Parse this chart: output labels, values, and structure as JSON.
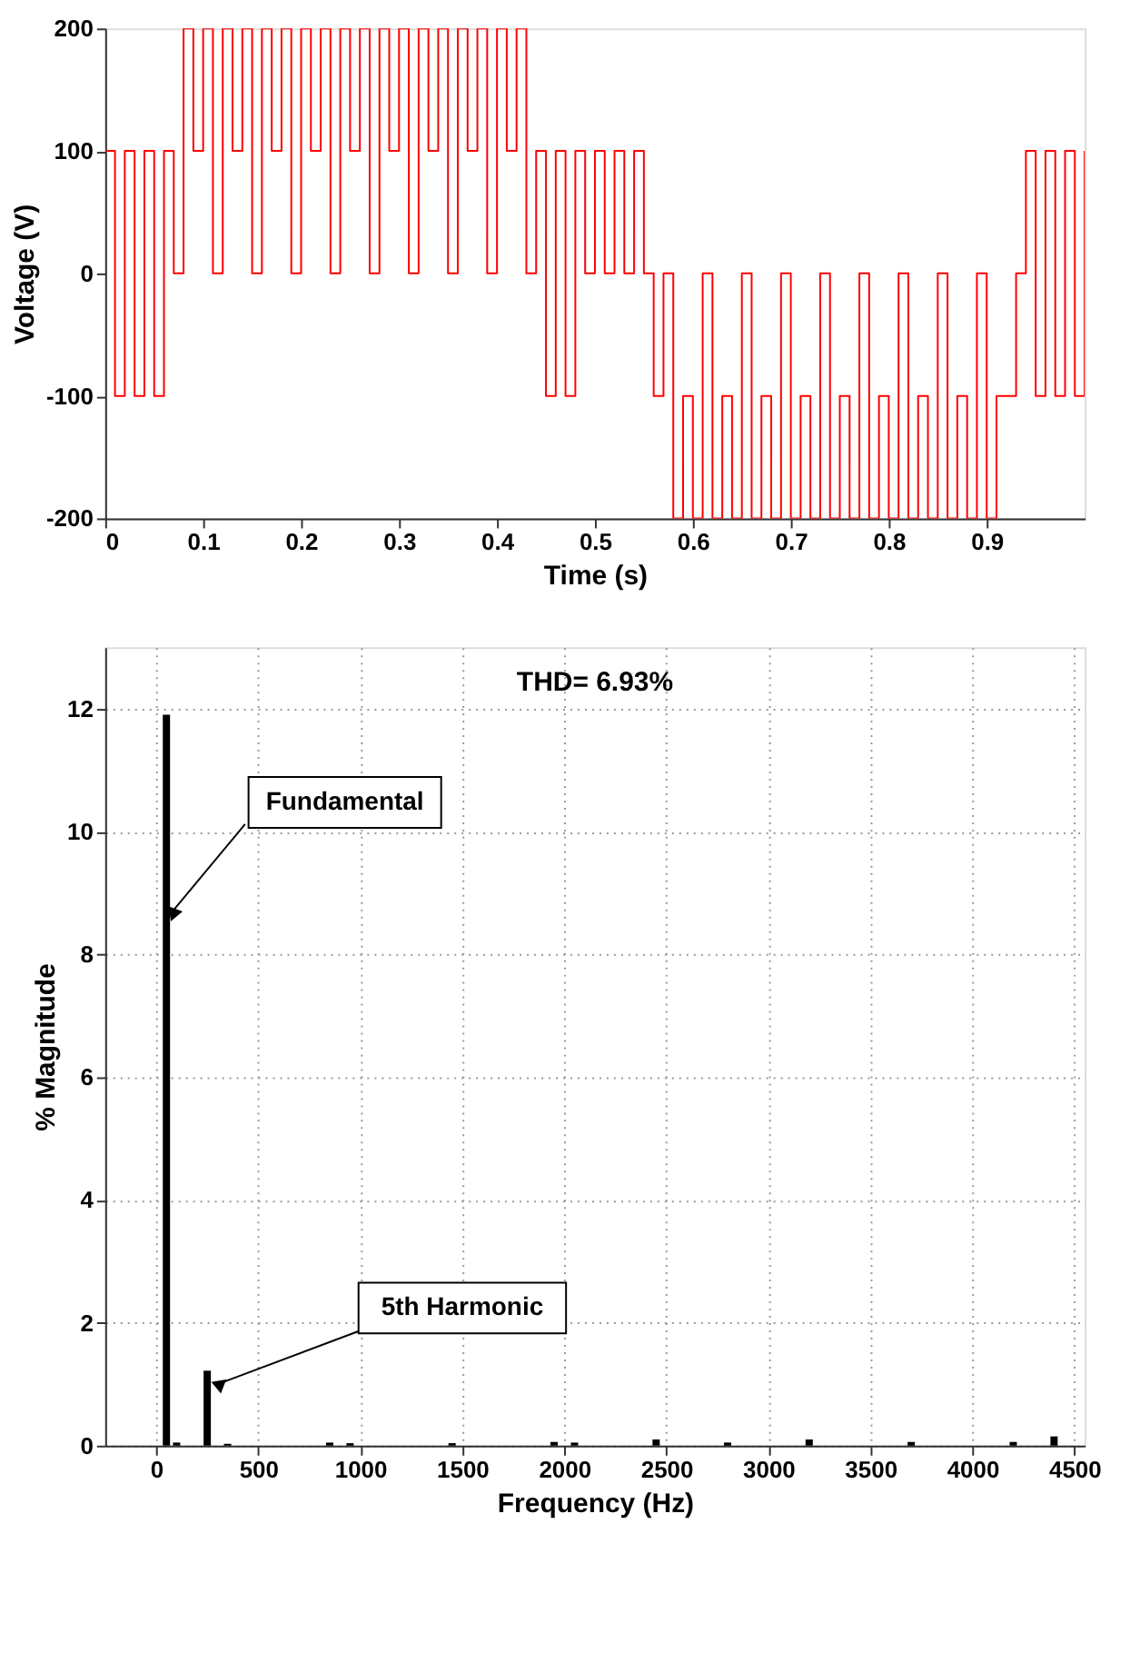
{
  "chart_data": [
    {
      "type": "step",
      "xlabel": "Time (s)",
      "ylabel": "Voltage (V)",
      "x": [
        0,
        0.01,
        0.02,
        0.03,
        0.04,
        0.05,
        0.06,
        0.07,
        0.08,
        0.09,
        0.1,
        0.11,
        0.12,
        0.13,
        0.14,
        0.15,
        0.16,
        0.17,
        0.18,
        0.19,
        0.2,
        0.21,
        0.22,
        0.23,
        0.24,
        0.25,
        0.26,
        0.27,
        0.28,
        0.29,
        0.3,
        0.31,
        0.32,
        0.33,
        0.34,
        0.35,
        0.36,
        0.37,
        0.38,
        0.39,
        0.4,
        0.41,
        0.42,
        0.43,
        0.44,
        0.45,
        0.46,
        0.47,
        0.48,
        0.49,
        0.5,
        0.51,
        0.52,
        0.53,
        0.54,
        0.55,
        0.56,
        0.57,
        0.58,
        0.59,
        0.6,
        0.61,
        0.62,
        0.63,
        0.64,
        0.65,
        0.66,
        0.67,
        0.68,
        0.69,
        0.7,
        0.71,
        0.72,
        0.73,
        0.74,
        0.75,
        0.76,
        0.77,
        0.78,
        0.79,
        0.8,
        0.81,
        0.82,
        0.83,
        0.84,
        0.85,
        0.86,
        0.87,
        0.88,
        0.89,
        0.9,
        0.91,
        0.92,
        0.93,
        0.94,
        0.95,
        0.96,
        0.97,
        0.98,
        0.99,
        1
      ],
      "series": [
        {
          "color": "#ff0000",
          "values": [
            100,
            -100,
            100,
            -100,
            100,
            -100,
            100,
            0,
            200,
            100,
            200,
            0,
            200,
            100,
            200,
            0,
            200,
            100,
            200,
            0,
            200,
            100,
            200,
            0,
            200,
            100,
            200,
            0,
            200,
            100,
            200,
            0,
            200,
            100,
            200,
            0,
            200,
            100,
            200,
            0,
            200,
            100,
            200,
            0,
            100,
            -100,
            100,
            -100,
            100,
            0,
            100,
            0,
            100,
            0,
            100,
            0,
            -100,
            0,
            -200,
            -100,
            -200,
            0,
            -200,
            -100,
            -200,
            0,
            -200,
            -100,
            -200,
            0,
            -200,
            -100,
            -200,
            0,
            -200,
            -100,
            -200,
            0,
            -200,
            -100,
            -200,
            0,
            -200,
            -100,
            -200,
            0,
            -200,
            -100,
            -200,
            0,
            -200,
            -100,
            -100,
            0,
            100,
            -100,
            100,
            -100,
            100,
            -100,
            100
          ]
        }
      ],
      "xlim": [
        0,
        1
      ],
      "xticks": [
        0,
        0.1,
        0.2,
        0.3,
        0.4,
        0.5,
        0.6,
        0.7,
        0.8,
        0.9
      ],
      "ylim": [
        -200,
        200
      ],
      "yticks": [
        -200,
        -100,
        0,
        100,
        200
      ],
      "grid": false
    },
    {
      "type": "bar",
      "xlabel": "Frequency (Hz)",
      "ylabel": "% Magnitude",
      "x": [
        50,
        100,
        250,
        350,
        850,
        950,
        1450,
        1950,
        2050,
        2450,
        2800,
        3200,
        3700,
        4200,
        4400
      ],
      "series": [
        {
          "color": "#000000",
          "values": [
            11.9,
            0.05,
            1.22,
            0.03,
            0.05,
            0.04,
            0.04,
            0.06,
            0.05,
            0.1,
            0.05,
            0.1,
            0.06,
            0.06,
            0.15
          ]
        }
      ],
      "xlim": [
        -250,
        4550
      ],
      "xticks": [
        0,
        500,
        1000,
        1500,
        2000,
        2500,
        3000,
        3500,
        4000,
        4500
      ],
      "ylim": [
        0,
        13
      ],
      "yticks": [
        0,
        2,
        4,
        6,
        8,
        10,
        12
      ],
      "grid": true,
      "annotations": [
        "THD= 6.93%",
        {
          "text": "Fundamental",
          "x": 80,
          "y": 8.7
        },
        {
          "text": "5th Harmonic",
          "x": 300,
          "y": 1.0
        }
      ]
    }
  ]
}
